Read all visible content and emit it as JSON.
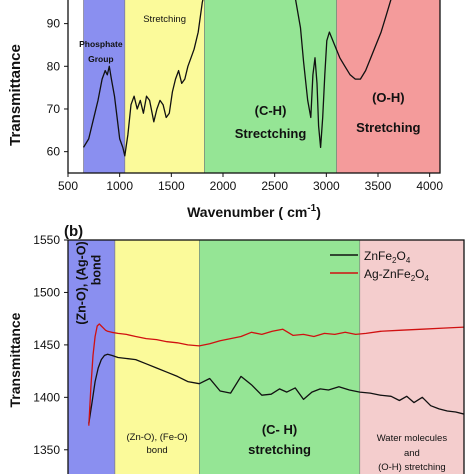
{
  "chart_data": [
    {
      "type": "line",
      "panel_label": "",
      "xlabel": "Wavenumber (cm-1)",
      "xlabel_main": "Wavenumber (",
      "xlabel_unit": "cm",
      "xlabel_exp": "-1",
      "xlabel_close": ")",
      "ylabel": "Transmittance",
      "xlim": [
        500,
        4100
      ],
      "ylim": [
        55,
        96
      ],
      "x_ticks": [
        "500",
        "1000",
        "1500",
        "2000",
        "2500",
        "3000",
        "3500",
        "4000"
      ],
      "y_ticks": [
        "60",
        "70",
        "80",
        "90"
      ],
      "regions": [
        {
          "x": [
            650,
            1050
          ],
          "color": "#8a8ff0",
          "labels": [
            "Phosphate",
            "Group"
          ]
        },
        {
          "x": [
            1050,
            1820
          ],
          "color": "#fbfa9a",
          "labels": [
            "Stretching"
          ]
        },
        {
          "x": [
            1820,
            3100
          ],
          "color": "#95e595",
          "labels": [
            "(C-H)",
            "Strectching"
          ]
        },
        {
          "x": [
            3100,
            4100
          ],
          "color": "#f49b9b",
          "labels": [
            "(O-H)",
            "Stretching"
          ]
        }
      ],
      "series": [
        {
          "color": "#111111",
          "x": [
            650,
            700,
            730,
            760,
            790,
            830,
            860,
            880,
            900,
            920,
            950,
            975,
            1000,
            1030,
            1050,
            1080,
            1110,
            1140,
            1170,
            1200,
            1230,
            1260,
            1290,
            1330,
            1360,
            1390,
            1420,
            1450,
            1480,
            1510,
            1540,
            1570,
            1600,
            1630,
            1660,
            1690,
            1720,
            1760,
            1800,
            1830,
            1860,
            1900,
            1950,
            2000,
            2050,
            2100,
            2150,
            2200,
            2250,
            2300,
            2350,
            2400,
            2450,
            2500,
            2550,
            2600,
            2650,
            2700,
            2750,
            2780,
            2820,
            2850,
            2870,
            2890,
            2910,
            2925,
            2945,
            2965,
            2985,
            3005,
            3030,
            3080,
            3130,
            3180,
            3230,
            3280,
            3330,
            3380,
            3430,
            3480,
            3530,
            3580,
            3630,
            3680,
            3730
          ],
          "y": [
            61,
            63,
            66,
            69,
            72,
            77,
            79,
            78,
            80,
            77,
            73,
            68,
            63,
            61,
            59,
            64,
            71,
            73,
            70,
            72,
            69,
            73,
            72,
            67,
            70,
            72,
            71,
            68,
            69,
            74,
            77,
            79,
            76,
            77,
            80,
            82,
            84,
            88,
            95,
            98,
            100,
            101,
            101,
            101,
            101,
            101,
            101,
            101,
            101,
            101,
            101,
            101,
            101,
            101,
            101,
            100,
            99,
            96,
            89,
            81,
            72,
            68,
            78,
            82,
            76,
            66,
            61,
            68,
            78,
            86,
            88,
            85,
            82,
            80,
            78,
            77,
            77,
            79,
            82,
            85,
            88,
            92,
            96,
            99,
            101
          ]
        }
      ]
    },
    {
      "type": "line",
      "panel_label": "(b)",
      "xlabel": "",
      "ylabel": "Transmittance",
      "xlim": [
        200,
        4000
      ],
      "ylim": [
        1325,
        1550
      ],
      "y_ticks": [
        "1350",
        "1400",
        "1450",
        "1500",
        "1550"
      ],
      "legend": {
        "position": "top-right",
        "items": [
          {
            "name_main": "ZnFe",
            "sub1": "2",
            "mid": "O",
            "sub2": "4",
            "color": "#111111"
          },
          {
            "name_main": "Ag-ZnFe",
            "sub1": "2",
            "mid": "O",
            "sub2": "4",
            "color": "#d01010"
          }
        ]
      },
      "regions": [
        {
          "x": [
            200,
            650
          ],
          "color": "#8a8ff0",
          "labels": [
            "(Zn-O), (Ag-O)",
            "bond"
          ]
        },
        {
          "x": [
            650,
            1460
          ],
          "color": "#fbfa9a",
          "labels": [
            "(Zn-O), (Fe-O)",
            "bond"
          ]
        },
        {
          "x": [
            1460,
            3000
          ],
          "color": "#95e595",
          "labels": [
            "(C- H)",
            "stretching"
          ]
        },
        {
          "x": [
            3000,
            4000
          ],
          "color": "#f4cdcd",
          "labels": [
            "Water molecules",
            "and",
            "(O-H) stretching"
          ]
        }
      ],
      "series": [
        {
          "name": "ZnFe2O4",
          "color": "#111111",
          "x": [
            400,
            430,
            460,
            490,
            520,
            550,
            580,
            620,
            680,
            760,
            850,
            950,
            1050,
            1150,
            1250,
            1350,
            1460,
            1560,
            1660,
            1760,
            1860,
            1960,
            2060,
            2150,
            2230,
            2300,
            2380,
            2460,
            2540,
            2620,
            2700,
            2800,
            2900,
            3000,
            3100,
            3200,
            3300,
            3380,
            3450,
            3520,
            3600,
            3680,
            3760,
            3840,
            3920,
            4000
          ],
          "y": [
            1375,
            1395,
            1415,
            1428,
            1436,
            1440,
            1441,
            1440,
            1438,
            1437,
            1436,
            1432,
            1428,
            1424,
            1420,
            1415,
            1413,
            1418,
            1406,
            1404,
            1420,
            1412,
            1402,
            1403,
            1408,
            1405,
            1409,
            1398,
            1405,
            1408,
            1407,
            1410,
            1407,
            1405,
            1404,
            1402,
            1401,
            1397,
            1401,
            1395,
            1400,
            1392,
            1389,
            1387,
            1386,
            1384
          ]
        },
        {
          "name": "Ag-ZnFe2O4",
          "color": "#d01010",
          "x": [
            400,
            420,
            440,
            460,
            480,
            500,
            520,
            540,
            560,
            580,
            620,
            680,
            760,
            850,
            950,
            1050,
            1150,
            1250,
            1350,
            1460,
            1560,
            1660,
            1760,
            1860,
            1960,
            2060,
            2160,
            2260,
            2360,
            2460,
            2560,
            2660,
            2760,
            2860,
            2960,
            3060,
            3200,
            3400,
            3600,
            3800,
            4000
          ],
          "y": [
            1373,
            1410,
            1440,
            1458,
            1468,
            1470,
            1468,
            1466,
            1464,
            1463,
            1462,
            1461,
            1460,
            1458,
            1456,
            1455,
            1453,
            1452,
            1450,
            1449,
            1451,
            1454,
            1456,
            1458,
            1462,
            1460,
            1463,
            1465,
            1459,
            1460,
            1458,
            1461,
            1460,
            1462,
            1460,
            1461,
            1463,
            1464,
            1465,
            1466,
            1467
          ]
        }
      ]
    }
  ]
}
